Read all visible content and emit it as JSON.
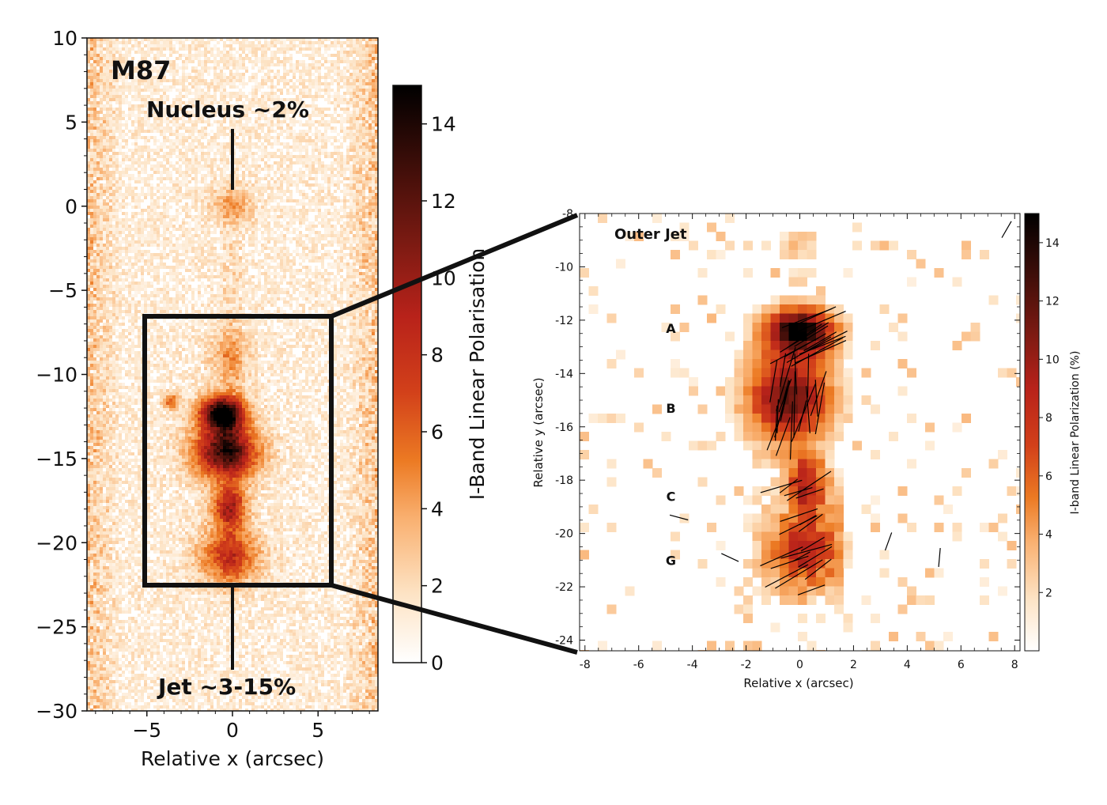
{
  "colors": {
    "colormap": [
      "#ffffff",
      "#fde3c4",
      "#f9b070",
      "#ec7a23",
      "#d2401a",
      "#b8221a",
      "#7a1a12",
      "#3a0d08",
      "#000000"
    ],
    "axis": "#111111",
    "vectors": "#000000"
  },
  "chart_data": [
    {
      "panel": "left",
      "type": "heatmap",
      "xlabel": "Relative x (arcsec)",
      "ylabel": "",
      "xlim": [
        -8.5,
        8.5
      ],
      "ylim": [
        -30,
        10
      ],
      "xticks": [
        -5,
        0,
        5
      ],
      "yticks": [
        10,
        5,
        0,
        -5,
        -10,
        -15,
        -20,
        -25,
        -30
      ],
      "xtick_labels": [
        "−5",
        "0",
        "5"
      ],
      "ytick_labels": [
        "10",
        "5",
        "0",
        "−5",
        "−10",
        "−15",
        "−20",
        "−25",
        "−30"
      ],
      "annotations": {
        "object": "M87",
        "nucleus": "Nucleus ~2%",
        "jet": "Jet ~3-15%"
      },
      "annotation_points": {
        "nucleus": {
          "x": 0,
          "y_from": 4.5,
          "y_to": 1
        },
        "jet": {
          "x": 0,
          "y_from": -22.5,
          "y_to": -27.5
        }
      },
      "zoom_box": {
        "x0": -5.2,
        "x1": 5.8,
        "y0": -22.5,
        "y1": -6.5
      },
      "blobs": [
        {
          "x": 0,
          "y": 0,
          "sx": 0.8,
          "sy": 0.8,
          "amp": 3.5
        },
        {
          "x": -0.6,
          "y": -12.3,
          "sx": 0.9,
          "sy": 0.7,
          "amp": 14.5
        },
        {
          "x": -0.4,
          "y": -14.6,
          "sx": 1.3,
          "sy": 1.1,
          "amp": 12.5
        },
        {
          "x": -0.2,
          "y": -17.9,
          "sx": 0.7,
          "sy": 0.9,
          "amp": 8
        },
        {
          "x": -0.2,
          "y": -20.8,
          "sx": 1.2,
          "sy": 1.1,
          "amp": 7
        },
        {
          "x": -0.2,
          "y": -9,
          "sx": 0.8,
          "sy": 1.2,
          "amp": 3
        },
        {
          "x": -3.6,
          "y": -11.6,
          "sx": 0.3,
          "sy": 0.3,
          "amp": 6
        }
      ],
      "colorbar": {
        "label": "I-Band Linear Polarisation",
        "range": [
          0,
          15
        ],
        "ticks": [
          0,
          2,
          4,
          6,
          8,
          10,
          12,
          14
        ]
      }
    },
    {
      "panel": "right",
      "type": "heatmap",
      "title": "Outer Jet",
      "xlabel": "Relative x (arcsec)",
      "ylabel": "Relative y (arcsec)",
      "xlim": [
        -8.2,
        8.2
      ],
      "ylim": [
        -24.4,
        -8
      ],
      "xticks": [
        -8,
        -6,
        -4,
        -2,
        0,
        2,
        4,
        6,
        8
      ],
      "yticks": [
        -8,
        -10,
        -12,
        -14,
        -16,
        -18,
        -20,
        -22,
        -24
      ],
      "xtick_labels": [
        "-8",
        "-6",
        "-4",
        "-2",
        "0",
        "2",
        "4",
        "6",
        "8"
      ],
      "ytick_labels": [
        "-8",
        "-10",
        "-12",
        "-14",
        "-16",
        "-18",
        "-20",
        "-22",
        "-24"
      ],
      "knots": [
        {
          "label": "A",
          "x": -4.8,
          "y": -12.3
        },
        {
          "label": "B",
          "x": -4.8,
          "y": -15.3
        },
        {
          "label": "C",
          "x": -4.8,
          "y": -18.6
        },
        {
          "label": "G",
          "x": -4.8,
          "y": -21.0
        }
      ],
      "blobs": [
        {
          "x": 0,
          "y": -12.4,
          "sx": 0.9,
          "sy": 0.6,
          "amp": 14
        },
        {
          "x": -0.4,
          "y": -14.9,
          "sx": 1.1,
          "sy": 1.2,
          "amp": 11.5
        },
        {
          "x": 0.3,
          "y": -18.2,
          "sx": 0.5,
          "sy": 0.7,
          "amp": 8
        },
        {
          "x": 0.2,
          "y": -20.6,
          "sx": 0.9,
          "sy": 0.9,
          "amp": 8
        },
        {
          "x": 0,
          "y": -9.2,
          "sx": 0.6,
          "sy": 0.5,
          "amp": 2.5
        },
        {
          "x": -3.3,
          "y": -11.8,
          "sx": 0.15,
          "sy": 0.1,
          "amp": 7
        }
      ],
      "vectors_sample": [
        {
          "x": 0,
          "y": -12.4,
          "angle": 25
        },
        {
          "x": -0.5,
          "y": -14.6,
          "angle": 75
        },
        {
          "x": 0.3,
          "y": -19.5,
          "angle": 30
        },
        {
          "x": -4.5,
          "y": -19.4,
          "angle": -15
        },
        {
          "x": -2.6,
          "y": -20.9,
          "angle": -25
        },
        {
          "x": 3.3,
          "y": -20.3,
          "angle": 70
        },
        {
          "x": 5.2,
          "y": -20.9,
          "angle": 85
        },
        {
          "x": 7.7,
          "y": -8.6,
          "angle": 60
        }
      ],
      "colorbar": {
        "label": "I-band Linear Polarization (%)",
        "range": [
          0,
          15
        ],
        "ticks": [
          2,
          4,
          6,
          8,
          10,
          12,
          14
        ]
      }
    }
  ]
}
